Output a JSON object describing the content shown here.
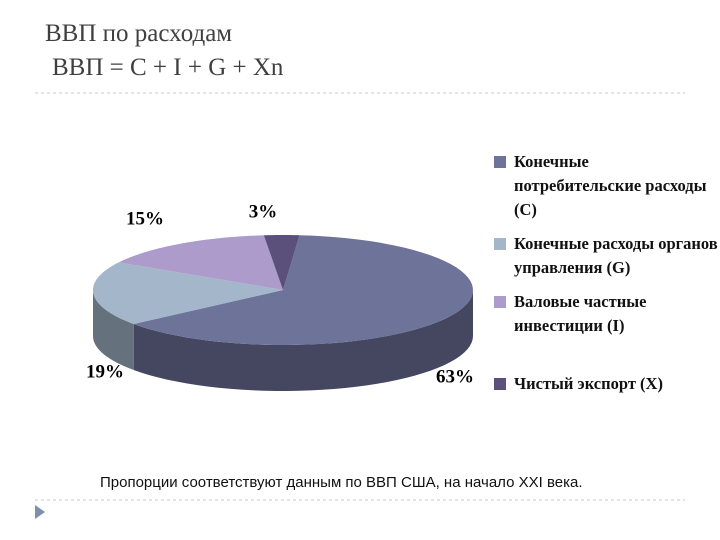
{
  "chart_data": {
    "type": "pie",
    "title": "ВВП по расходам",
    "subtitle": "ВВП = C + I + G + Xn",
    "categories": [
      "Конечные потребительские расходы (С)",
      "Конечные расходы органов управления (G)",
      "Валовые частные инвестиции (I)",
      "Чистый экспорт (X)"
    ],
    "values": [
      63,
      19,
      15,
      3
    ],
    "value_labels": [
      "63%",
      "19%",
      "15%",
      "3%"
    ],
    "colors": [
      "#6d7399",
      "#a3b6ca",
      "#ad9bcc",
      "#5b4f7c"
    ],
    "annotation": "Пропорции соответствуют данным по ВВП США, на начало XXI века."
  }
}
